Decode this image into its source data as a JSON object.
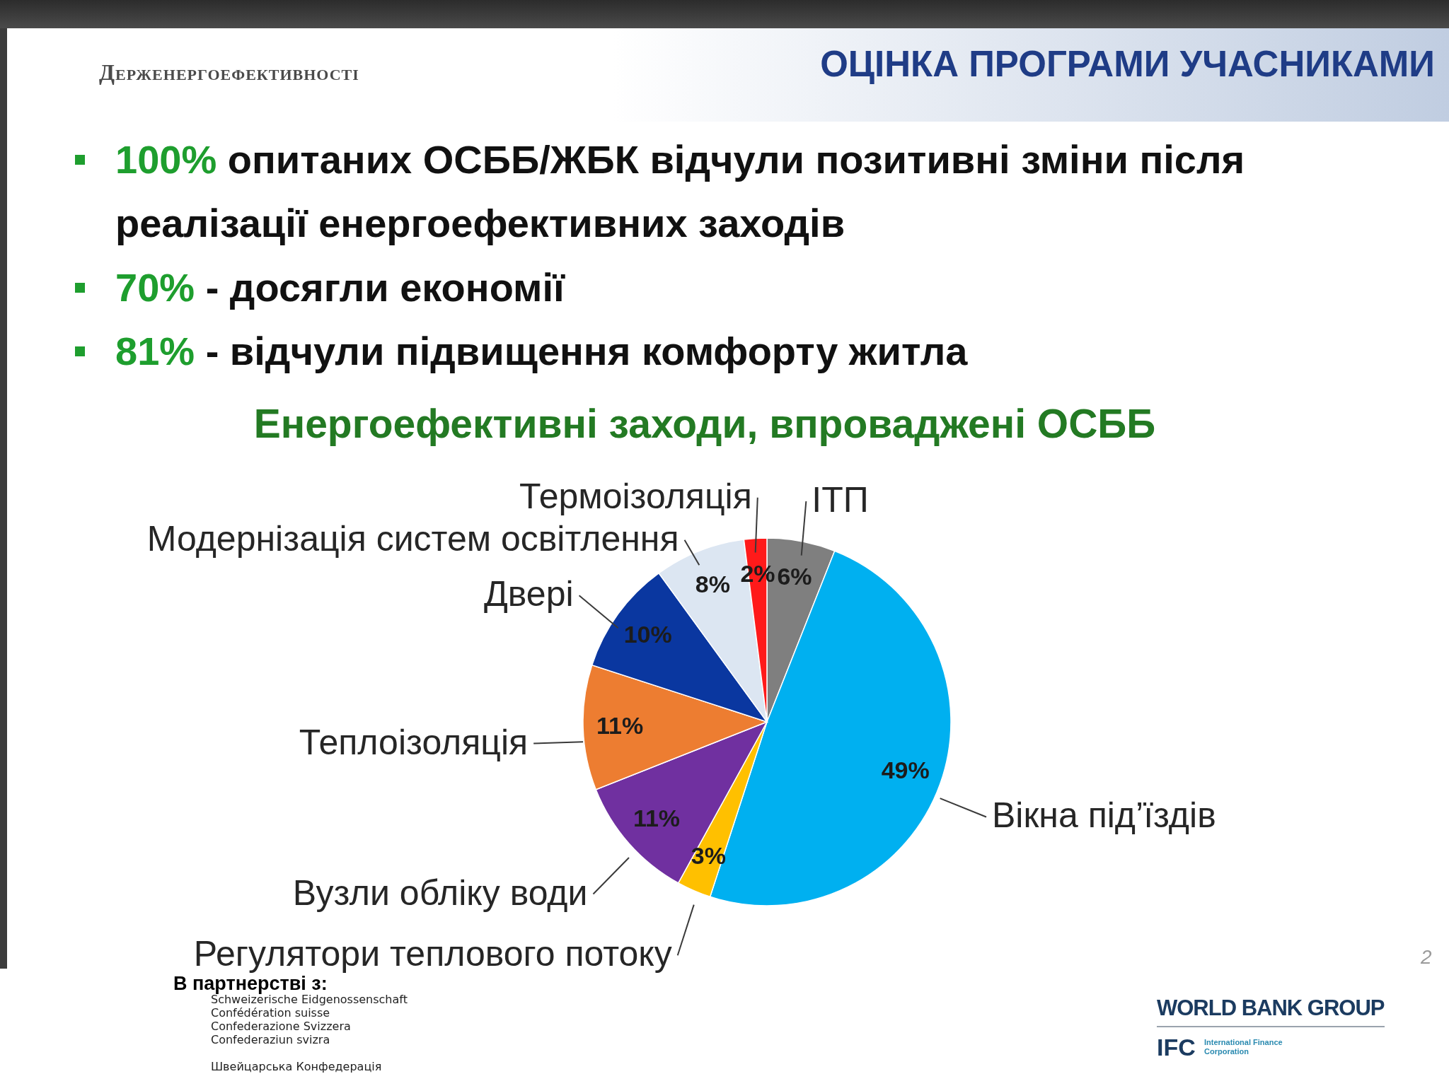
{
  "chart_data": {
    "type": "pie",
    "title": "ОЦІНКА ПРОГРАМИ УЧАСНИКАМИ",
    "subtitle": "Енергоефективні заходи, впроваджені ОСББ",
    "categories": [
      "ІТП",
      "Вікна під’їздів",
      "Регулятори теплового потоку",
      "Вузли обліку води",
      "Теплоізоляція",
      "Двері",
      "Модернізація систем освітлення",
      "Термоізоляція"
    ],
    "values": [
      6,
      49,
      3,
      11,
      11,
      10,
      8,
      2
    ],
    "value_labels": [
      "6%",
      "49%",
      "3%",
      "11%",
      "11%",
      "10%",
      "8%",
      "2%"
    ],
    "colors": [
      "#7f7f7f",
      "#00b0f0",
      "#ffc000",
      "#7030a0",
      "#ed7d31",
      "#0a37a0",
      "#dce6f2",
      "#ff1a1a"
    ],
    "annotations": [
      "Держенергоефективності",
      "100% опитаних ОСББ/ЖБК відчули позитивні зміни після реалізації енергоефективних заходів",
      "70% - досягли економії",
      "81% - відчули підвищення комфорту житла",
      "В партнерстві з:",
      "Schweizerische Eidgenossenschaft",
      "Confédération suisse",
      "Confederazione Svizzera",
      "Confederaziun svizra",
      "Швейцарська Конфедерація",
      "WORLD BANK GROUP",
      "IFC",
      "International Finance Corporation",
      "2"
    ]
  }
}
